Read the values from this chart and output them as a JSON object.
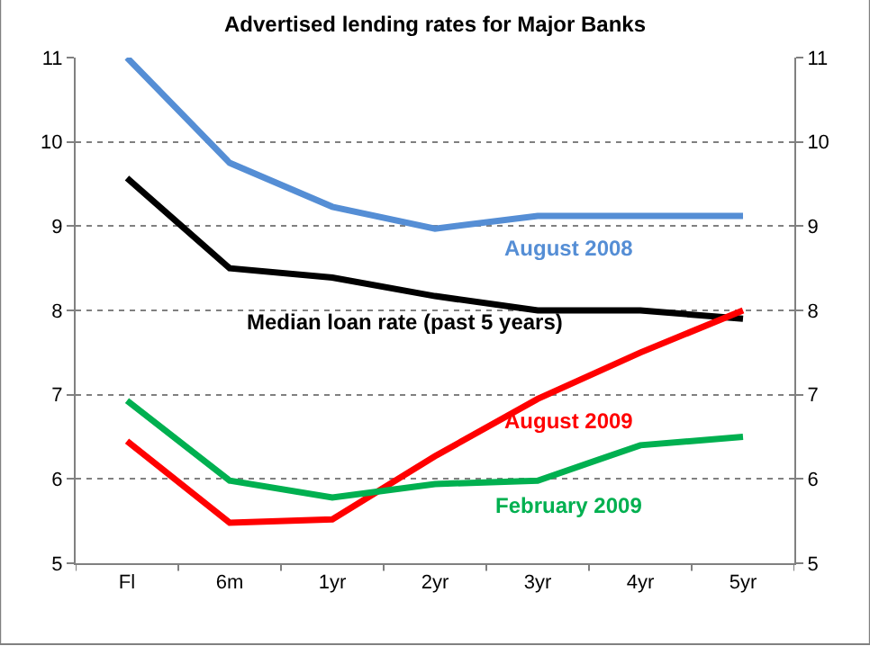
{
  "chart_data": {
    "type": "line",
    "title": "Advertised lending rates for Major Banks",
    "categories": [
      "Fl",
      "6m",
      "1yr",
      "2yr",
      "3yr",
      "4yr",
      "5yr"
    ],
    "series": [
      {
        "name": "August 2008",
        "color": "#558ed5",
        "values": [
          11.0,
          9.75,
          9.23,
          8.97,
          9.12,
          9.12,
          9.12
        ]
      },
      {
        "name": "Median loan rate (past 5 years)",
        "color": "#000000",
        "values": [
          9.57,
          8.5,
          8.39,
          8.17,
          8.0,
          8.0,
          7.9
        ]
      },
      {
        "name": "August 2009",
        "color": "#ff0000",
        "values": [
          6.45,
          5.48,
          5.52,
          6.27,
          6.95,
          7.5,
          8.0
        ]
      },
      {
        "name": "February 2009",
        "color": "#00b050",
        "values": [
          6.93,
          5.98,
          5.78,
          5.94,
          5.98,
          6.4,
          6.5
        ]
      }
    ],
    "ylim": [
      5,
      11
    ],
    "yticks": [
      5,
      6,
      7,
      8,
      9,
      10,
      11
    ],
    "y2lim": [
      5,
      11
    ],
    "y2ticks": [
      5,
      6,
      7,
      8,
      9,
      10,
      11
    ],
    "grid": "y",
    "legend": false,
    "marker": "none",
    "line_style": "solid"
  }
}
